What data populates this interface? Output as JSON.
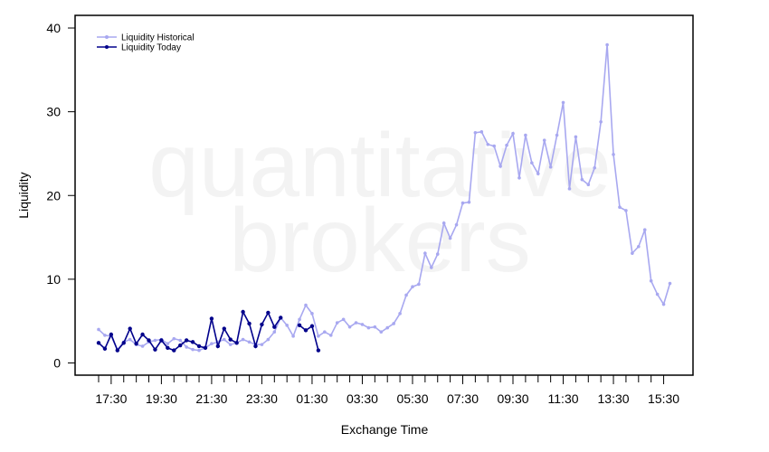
{
  "chart_data": {
    "type": "line",
    "xlabel": "Exchange Time",
    "ylabel": "Liquidity",
    "ylim": [
      0,
      40
    ],
    "yticks": [
      0,
      10,
      20,
      30,
      40
    ],
    "xtick_labels": [
      "17:30",
      "19:30",
      "21:30",
      "23:30",
      "01:30",
      "03:30",
      "05:30",
      "07:30",
      "09:30",
      "11:30",
      "13:30",
      "15:30"
    ],
    "legend_position": "top-left",
    "watermark": [
      "quantitative",
      "brokers"
    ],
    "series": [
      {
        "name": "Liquidity Historical",
        "color": "#a8a8f0",
        "values": [
          4.0,
          3.3,
          3.2,
          1.6,
          2.5,
          2.8,
          2.2,
          2.0,
          2.5,
          2.7,
          2.8,
          2.3,
          2.9,
          2.7,
          1.9,
          1.6,
          1.5,
          1.8,
          2.3,
          2.5,
          2.8,
          2.2,
          2.4,
          2.8,
          2.5,
          2.2,
          2.2,
          2.8,
          3.7,
          5.4,
          4.5,
          3.2,
          5.2,
          6.9,
          5.9,
          3.2,
          3.7,
          3.3,
          4.8,
          5.2,
          4.3,
          4.8,
          4.6,
          4.2,
          4.3,
          3.7,
          4.2,
          4.7,
          5.9,
          8.1,
          9.1,
          9.4,
          13.1,
          11.4,
          13.0,
          16.7,
          14.9,
          16.5,
          19.1,
          19.2,
          27.5,
          27.6,
          26.1,
          25.9,
          23.5,
          26.0,
          27.4,
          22.1,
          27.2,
          23.9,
          22.6,
          26.6,
          23.4,
          27.2,
          31.1,
          20.8,
          27.0,
          21.9,
          21.3,
          23.3,
          28.8,
          38.0,
          24.9,
          18.6,
          18.2,
          13.1,
          13.9,
          15.9,
          9.8,
          8.2,
          7.0,
          9.5
        ]
      },
      {
        "name": "Liquidity Today",
        "color": "#00008b",
        "segments": [
          [
            2.4,
            1.7,
            3.4,
            1.5,
            2.4,
            4.1,
            2.3,
            3.4,
            2.7,
            1.6,
            2.7,
            1.8,
            1.5,
            2.1,
            2.7,
            2.5,
            2.0,
            1.8,
            5.3,
            2.0,
            4.1,
            2.8,
            2.4,
            6.1,
            4.7,
            2.0,
            4.6,
            6.0,
            4.3,
            5.4
          ],
          [
            4.5,
            3.9,
            4.4,
            1.5
          ]
        ],
        "segment_starts": [
          0,
          32
        ]
      }
    ]
  }
}
